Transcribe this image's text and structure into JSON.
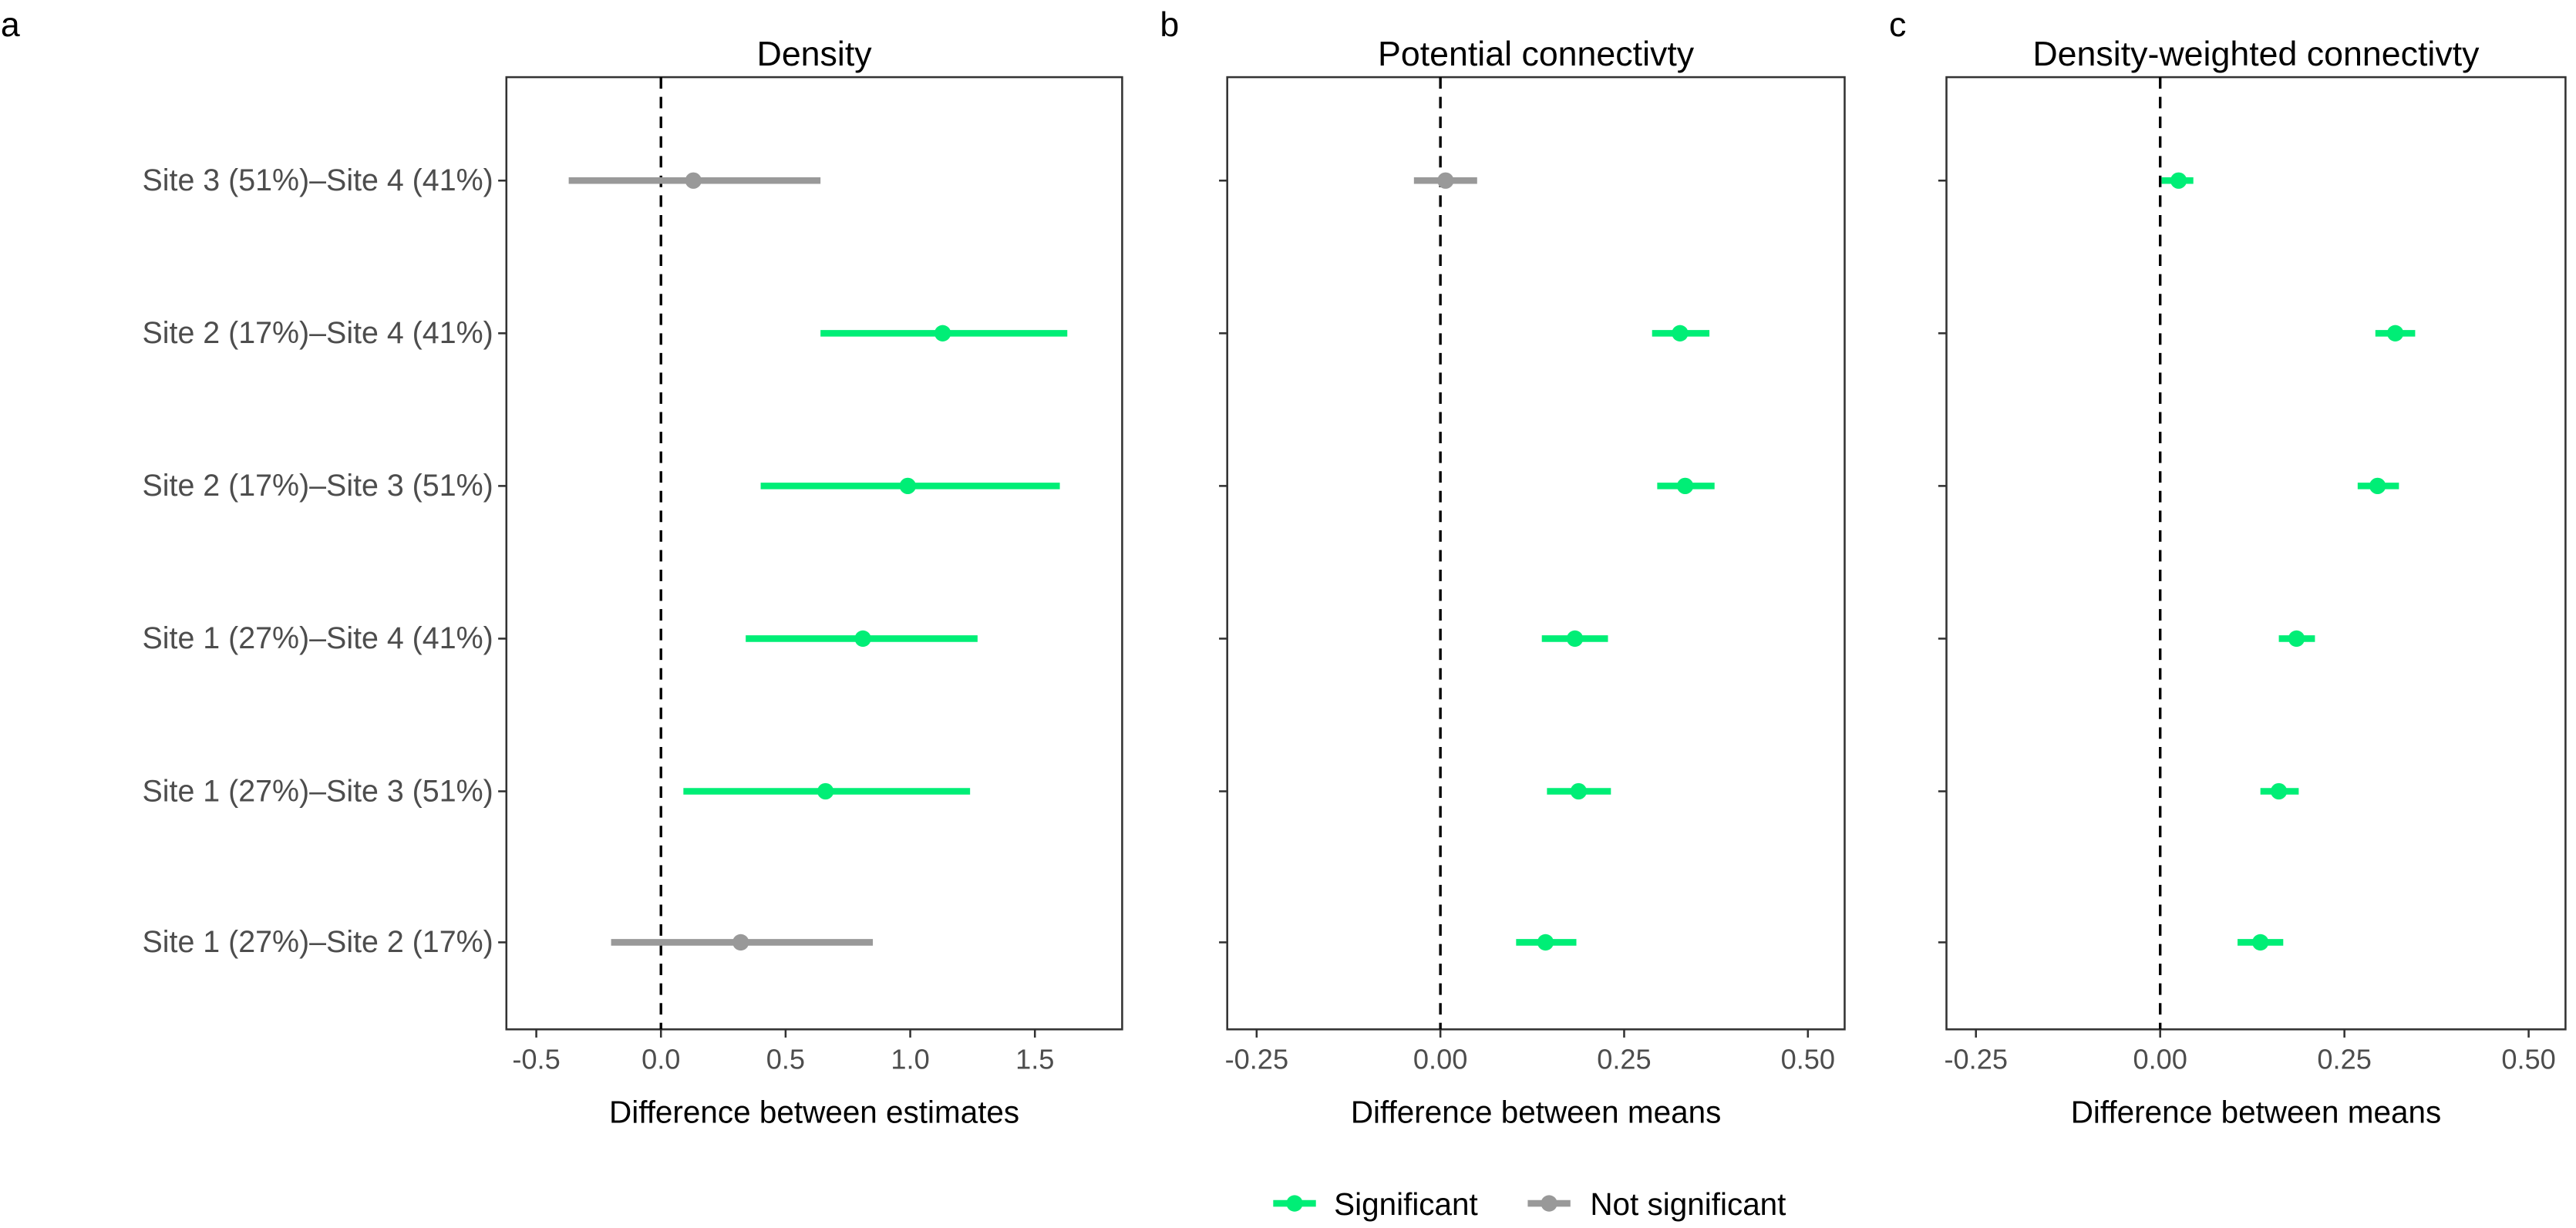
{
  "colors": {
    "Significant": "#00EE76",
    "Not significant": "#999999"
  },
  "categories": [
    "Site 3 (51%)–Site 4 (41%)",
    "Site 2 (17%)–Site 4 (41%)",
    "Site 2 (17%)–Site 3 (51%)",
    "Site 1 (27%)–Site 4 (41%)",
    "Site 1 (27%)–Site 3 (51%)",
    "Site 1 (27%)–Site 2 (17%)"
  ],
  "legend": {
    "items": [
      "Significant",
      "Not significant"
    ],
    "position": "bottom"
  },
  "chart_data": [
    {
      "type": "scatter",
      "panel_letter": "a",
      "title": "Density",
      "xlabel": "Difference between estimates",
      "ylabel": "",
      "xlim": [
        -0.62,
        1.85
      ],
      "xticks": [
        -0.5,
        0.0,
        0.5,
        1.0,
        1.5
      ],
      "xtick_labels": [
        "-0.5",
        "0.0",
        "0.5",
        "1.0",
        "1.5"
      ],
      "reference_line": 0,
      "grid": false,
      "points": [
        {
          "category": "Site 3 (51%)–Site 4 (41%)",
          "estimate": 0.13,
          "lower": -0.37,
          "upper": 0.64,
          "group": "Not significant"
        },
        {
          "category": "Site 2 (17%)–Site 4 (41%)",
          "estimate": 1.13,
          "lower": 0.64,
          "upper": 1.63,
          "group": "Significant"
        },
        {
          "category": "Site 2 (17%)–Site 3 (51%)",
          "estimate": 0.99,
          "lower": 0.4,
          "upper": 1.6,
          "group": "Significant"
        },
        {
          "category": "Site 1 (27%)–Site 4 (41%)",
          "estimate": 0.81,
          "lower": 0.34,
          "upper": 1.27,
          "group": "Significant"
        },
        {
          "category": "Site 1 (27%)–Site 3 (51%)",
          "estimate": 0.66,
          "lower": 0.09,
          "upper": 1.24,
          "group": "Significant"
        },
        {
          "category": "Site 1 (27%)–Site 2 (17%)",
          "estimate": 0.32,
          "lower": -0.2,
          "upper": 0.85,
          "group": "Not significant"
        }
      ]
    },
    {
      "type": "scatter",
      "panel_letter": "b",
      "title": "Potential connectivty",
      "xlabel": "Difference between means",
      "ylabel": "",
      "xlim": [
        -0.29,
        0.55
      ],
      "xticks": [
        -0.25,
        0.0,
        0.25,
        0.5
      ],
      "xtick_labels": [
        "-0.25",
        "0.00",
        "0.25",
        "0.50"
      ],
      "reference_line": 0,
      "grid": false,
      "points": [
        {
          "category": "Site 3 (51%)–Site 4 (41%)",
          "estimate": 0.007,
          "lower": -0.036,
          "upper": 0.05,
          "group": "Not significant"
        },
        {
          "category": "Site 2 (17%)–Site 4 (41%)",
          "estimate": 0.326,
          "lower": 0.288,
          "upper": 0.366,
          "group": "Significant"
        },
        {
          "category": "Site 2 (17%)–Site 3 (51%)",
          "estimate": 0.333,
          "lower": 0.295,
          "upper": 0.373,
          "group": "Significant"
        },
        {
          "category": "Site 1 (27%)–Site 4 (41%)",
          "estimate": 0.183,
          "lower": 0.138,
          "upper": 0.228,
          "group": "Significant"
        },
        {
          "category": "Site 1 (27%)–Site 3 (51%)",
          "estimate": 0.188,
          "lower": 0.145,
          "upper": 0.232,
          "group": "Significant"
        },
        {
          "category": "Site 1 (27%)–Site 2 (17%)",
          "estimate": 0.143,
          "lower": 0.103,
          "upper": 0.185,
          "group": "Significant"
        }
      ]
    },
    {
      "type": "scatter",
      "panel_letter": "c",
      "title": "Density-weighted connectivty",
      "xlabel": "Difference between means",
      "ylabel": "",
      "xlim": [
        -0.29,
        0.55
      ],
      "xticks": [
        -0.25,
        0.0,
        0.25,
        0.5
      ],
      "xtick_labels": [
        "-0.25",
        "0.00",
        "0.25",
        "0.50"
      ],
      "reference_line": 0,
      "grid": false,
      "points": [
        {
          "category": "Site 3 (51%)–Site 4 (41%)",
          "estimate": 0.025,
          "lower": 0.002,
          "upper": 0.045,
          "group": "Significant"
        },
        {
          "category": "Site 2 (17%)–Site 4 (41%)",
          "estimate": 0.319,
          "lower": 0.292,
          "upper": 0.346,
          "group": "Significant"
        },
        {
          "category": "Site 2 (17%)–Site 3 (51%)",
          "estimate": 0.295,
          "lower": 0.268,
          "upper": 0.324,
          "group": "Significant"
        },
        {
          "category": "Site 1 (27%)–Site 4 (41%)",
          "estimate": 0.185,
          "lower": 0.161,
          "upper": 0.21,
          "group": "Significant"
        },
        {
          "category": "Site 1 (27%)–Site 3 (51%)",
          "estimate": 0.161,
          "lower": 0.136,
          "upper": 0.188,
          "group": "Significant"
        },
        {
          "category": "Site 1 (27%)–Site 2 (17%)",
          "estimate": 0.136,
          "lower": 0.105,
          "upper": 0.167,
          "group": "Significant"
        }
      ]
    }
  ]
}
